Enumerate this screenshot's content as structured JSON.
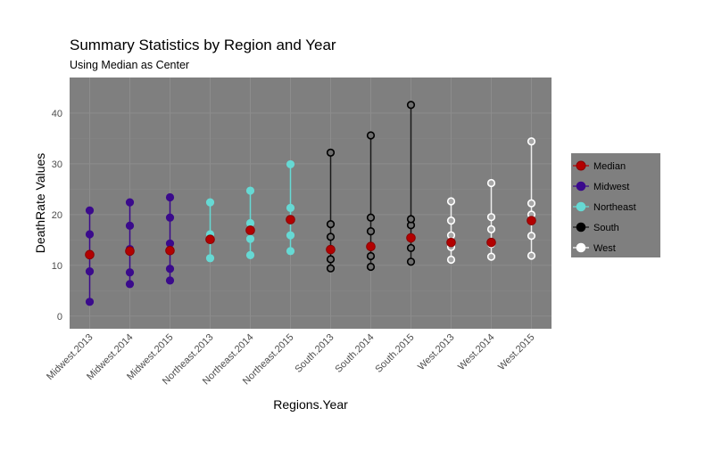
{
  "chart_data": {
    "type": "scatter",
    "title": "Summary Statistics by Region and Year",
    "subtitle": "Using Median as Center",
    "xlabel": "Regions.Year",
    "ylabel": "DeathRate Values",
    "ylim": [
      -2.5,
      47
    ],
    "yticks": [
      0,
      10,
      20,
      30,
      40
    ],
    "categories": [
      "Midwest.2013",
      "Midwest.2014",
      "Midwest.2015",
      "Northeast.2013",
      "Northeast.2014",
      "Northeast.2015",
      "South.2013",
      "South.2014",
      "South.2015",
      "West.2013",
      "West.2014",
      "West.2015"
    ],
    "grid": true,
    "legend_position": "right",
    "series": [
      {
        "name": "Midwest",
        "color": "#3a0a8c",
        "points": [
          {
            "category": "Midwest.2013",
            "values": [
              2.8,
              8.8,
              12.0,
              16.1,
              20.8
            ],
            "range": [
              2.8,
              20.8
            ]
          },
          {
            "category": "Midwest.2014",
            "values": [
              6.3,
              8.6,
              13.2,
              17.8,
              22.4
            ],
            "range": [
              6.3,
              22.4
            ]
          },
          {
            "category": "Midwest.2015",
            "values": [
              7.0,
              9.3,
              14.3,
              19.4,
              23.4
            ],
            "range": [
              7.0,
              23.4
            ]
          }
        ]
      },
      {
        "name": "Northeast",
        "color": "#66d9d4",
        "points": [
          {
            "category": "Northeast.2013",
            "values": [
              11.4,
              15.4,
              16.1,
              22.4
            ],
            "range": [
              11.4,
              22.4
            ]
          },
          {
            "category": "Northeast.2014",
            "values": [
              12.0,
              15.2,
              18.3,
              24.7
            ],
            "range": [
              12.0,
              24.7
            ]
          },
          {
            "category": "Northeast.2015",
            "values": [
              12.8,
              15.9,
              21.3,
              29.9
            ],
            "range": [
              12.8,
              29.9
            ]
          }
        ]
      },
      {
        "name": "South",
        "color": "#000000",
        "points": [
          {
            "category": "South.2013",
            "values": [
              9.4,
              11.2,
              13.2,
              15.6,
              18.1,
              32.2
            ],
            "range": [
              9.4,
              32.2
            ]
          },
          {
            "category": "South.2014",
            "values": [
              9.7,
              11.8,
              13.6,
              16.7,
              19.4,
              35.6
            ],
            "range": [
              9.7,
              35.6
            ]
          },
          {
            "category": "South.2015",
            "values": [
              10.7,
              13.4,
              15.5,
              17.9,
              19.1,
              41.6
            ],
            "range": [
              10.7,
              41.6
            ]
          }
        ]
      },
      {
        "name": "West",
        "color": "#ffffff",
        "points": [
          {
            "category": "West.2013",
            "values": [
              11.1,
              13.6,
              15.9,
              18.8,
              22.6
            ],
            "range": [
              11.1,
              22.6
            ]
          },
          {
            "category": "West.2014",
            "values": [
              11.7,
              14.2,
              17.1,
              19.5,
              26.2
            ],
            "range": [
              11.7,
              26.2
            ]
          },
          {
            "category": "West.2015",
            "values": [
              11.9,
              15.8,
              20.0,
              22.2,
              34.4
            ],
            "range": [
              11.9,
              34.4
            ]
          }
        ]
      },
      {
        "name": "Median",
        "color": "#b30000",
        "values": [
          12.1,
          12.8,
          12.9,
          15.1,
          16.9,
          19.0,
          13.1,
          13.7,
          15.4,
          14.5,
          14.5,
          18.8
        ]
      }
    ],
    "legend_order": [
      "Median",
      "Midwest",
      "Northeast",
      "South",
      "West"
    ]
  }
}
